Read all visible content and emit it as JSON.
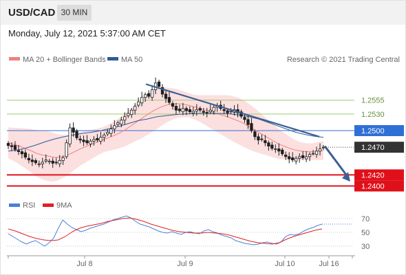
{
  "header": {
    "symbol": "USD/CAD",
    "timeframe": "30 MIN",
    "datetime": "Monday, July 12, 2021 5:37:00 AM CET"
  },
  "legend": {
    "ma20_label": "MA 20 + Bollinger Bands",
    "ma50_label": "MA 50",
    "copyright": "Research © 2021 Trading Central"
  },
  "rsi_legend": {
    "rsi_label": "RSI",
    "ma_label": "9MA"
  },
  "colors": {
    "candle": "#1f1f1f",
    "bollinger_fill": "#fbd9d9",
    "ma20": "#f08080",
    "ma50": "#2f5a96",
    "trendline": "#3d5f93",
    "current_price": "#333333",
    "support": "#e0101a",
    "resistance_blue": "#2f6fd6",
    "target_green": "#9ccc70",
    "rsi": "#4a7fd8",
    "rsi_ma": "#e02020"
  },
  "chart_data": [
    {
      "type": "line",
      "subtype": "candlestick",
      "title": "USD/CAD",
      "x_labels": [
        "Jul 8",
        "Jul 9",
        "Jul 10",
        "Jul 16"
      ],
      "ylim": [
        1.2382,
        1.2618
      ],
      "close_series": [
        1.2473,
        1.2471,
        1.2466,
        1.2462,
        1.2458,
        1.2452,
        1.2447,
        1.2444,
        1.2442,
        1.244,
        1.2443,
        1.2447,
        1.2445,
        1.2441,
        1.2442,
        1.2446,
        1.2451,
        1.2478,
        1.2505,
        1.2497,
        1.2487,
        1.2483,
        1.248,
        1.2478,
        1.2481,
        1.2484,
        1.2483,
        1.2488,
        1.2492,
        1.2497,
        1.2503,
        1.2509,
        1.2514,
        1.2519,
        1.2525,
        1.2531,
        1.2537,
        1.2544,
        1.2552,
        1.256,
        1.2565,
        1.2562,
        1.2574,
        1.2586,
        1.258,
        1.2566,
        1.2558,
        1.2551,
        1.2544,
        1.2537,
        1.2536,
        1.254,
        1.2536,
        1.2534,
        1.2535,
        1.2538,
        1.2537,
        1.2533,
        1.2532,
        1.2537,
        1.2542,
        1.2544,
        1.254,
        1.2536,
        1.2532,
        1.2535,
        1.2538,
        1.2532,
        1.2526,
        1.252,
        1.2511,
        1.25,
        1.2489,
        1.2483,
        1.2484,
        1.2478,
        1.2472,
        1.2468,
        1.2467,
        1.2463,
        1.2458,
        1.2453,
        1.2449,
        1.2447,
        1.245,
        1.2453,
        1.2451,
        1.2453,
        1.2457,
        1.2459,
        1.2463,
        1.2467,
        1.247
      ],
      "series": [
        {
          "name": "MA 20 + Bollinger Bands",
          "values": [
            1.2478,
            1.2475,
            1.2472,
            1.2468,
            1.2464,
            1.2459,
            1.2456,
            1.2454,
            1.2452,
            1.2452,
            1.2454,
            1.2458,
            1.2463,
            1.2468,
            1.2472,
            1.2476,
            1.248,
            1.2484,
            1.2488,
            1.2492,
            1.2497,
            1.2503,
            1.251,
            1.2517,
            1.2524,
            1.2531,
            1.2537,
            1.2542,
            1.2546,
            1.2548,
            1.2549,
            1.2548,
            1.2546,
            1.2543,
            1.254,
            1.2537,
            1.2534,
            1.2531,
            1.2528,
            1.2525,
            1.2521,
            1.2517,
            1.2512,
            1.2506,
            1.25,
            1.2494,
            1.2488,
            1.2482,
            1.2476,
            1.2472,
            1.2468,
            1.2465,
            1.2463,
            1.2462,
            1.2462,
            1.2463,
            1.2464
          ]
        },
        {
          "name": "MA 50",
          "values": [
            1.2463,
            1.2465,
            1.2469,
            1.2474,
            1.248,
            1.2485,
            1.2489,
            1.2492,
            1.2495,
            1.2497,
            1.25,
            1.2504,
            1.2508,
            1.2513,
            1.2518,
            1.2521,
            1.2525,
            1.2527,
            1.2529,
            1.253,
            1.2531,
            1.2531,
            1.2531,
            1.2531,
            1.253,
            1.2528,
            1.2525,
            1.2521,
            1.2515,
            1.2509,
            1.2503,
            1.2497,
            1.2493,
            1.249,
            1.2488
          ]
        }
      ],
      "trendline": {
        "from": 1.2584,
        "to": 1.2489
      },
      "projection": {
        "from": 1.2472,
        "to": 1.2408
      },
      "levels": [
        {
          "value": 1.2555,
          "label": "1.2555",
          "kind": "target"
        },
        {
          "value": 1.253,
          "label": "1.2530",
          "kind": "target"
        },
        {
          "value": 1.25,
          "label": "1.2500",
          "kind": "pivot"
        },
        {
          "value": 1.247,
          "label": "1.2470",
          "kind": "current"
        },
        {
          "value": 1.242,
          "label": "1.2420",
          "kind": "support"
        },
        {
          "value": 1.24,
          "label": "1.2400",
          "kind": "support"
        }
      ]
    },
    {
      "type": "line",
      "title": "RSI",
      "ylim": [
        20,
        80
      ],
      "y_ticks": [
        70,
        50,
        30
      ],
      "series": [
        {
          "name": "RSI",
          "values": [
            48,
            44,
            40,
            36,
            33,
            36,
            38,
            34,
            30,
            35,
            42,
            56,
            68,
            62,
            57,
            54,
            51,
            53,
            56,
            58,
            60,
            62,
            65,
            68,
            70,
            72,
            74,
            71,
            66,
            62,
            60,
            58,
            55,
            52,
            50,
            49,
            51,
            49,
            47,
            50,
            51,
            49,
            48,
            52,
            54,
            51,
            49,
            46,
            44,
            42,
            38,
            36,
            34,
            33,
            32,
            33,
            35,
            36,
            34,
            33,
            36,
            44,
            47,
            46,
            48,
            52,
            55,
            57,
            60,
            62
          ]
        },
        {
          "name": "9MA",
          "values": [
            55,
            52,
            48,
            44,
            41,
            39,
            38,
            39,
            44,
            51,
            56,
            59,
            61,
            63,
            66,
            68,
            70,
            71,
            69,
            66,
            62,
            59,
            56,
            53,
            51,
            50,
            49,
            49,
            50,
            49,
            48,
            46,
            43,
            40,
            37,
            35,
            34,
            33,
            35,
            40,
            44,
            47,
            50,
            53,
            55
          ]
        }
      ]
    }
  ]
}
